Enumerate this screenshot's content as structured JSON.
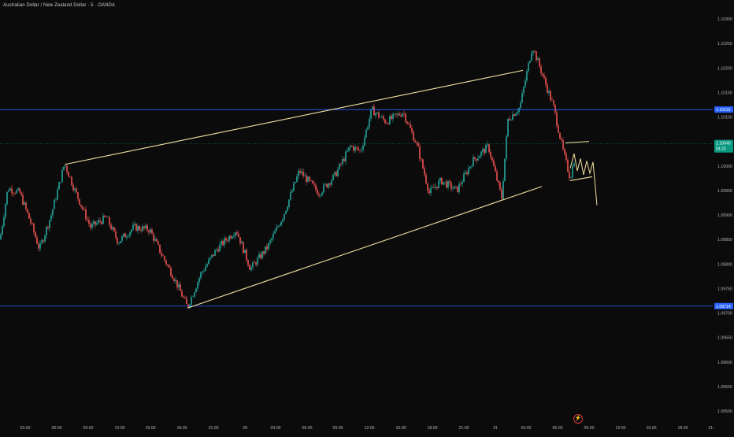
{
  "header": {
    "symbol_title": "Australian Dollar / New Zealand Dollar · 5 · OANDA"
  },
  "colors": {
    "background": "#0b0b0c",
    "up_candle": "#26a69a",
    "down_candle": "#ef5350",
    "trendline": "#f3e2a0",
    "hline": "#2962ff",
    "price_tag": "#2962ff",
    "current_tag": "#089981"
  },
  "chart_data": {
    "type": "candlestick",
    "title": "Australian Dollar / New Zealand Dollar · 5 · OANDA",
    "timeframe": "5",
    "ylim": [
      1.0945,
      1.1032
    ],
    "grid": false,
    "y_ticks": [
      "1.10300",
      "1.10250",
      "1.10200",
      "1.10150",
      "1.10100",
      "1.10050",
      "1.10000",
      "1.09950",
      "1.09900",
      "1.09850",
      "1.09800",
      "1.09750",
      "1.09700",
      "1.09650",
      "1.09600",
      "1.09550",
      "1.09500"
    ],
    "x_ticks": [
      "03:00",
      "06:00",
      "09:00",
      "12:00",
      "15:00",
      "18:00",
      "21:00",
      "28",
      "03:00",
      "06:00",
      "09:00",
      "12:00",
      "15:00",
      "18:00",
      "21:00",
      "31",
      "03:00",
      "06:00",
      "09:00",
      "12:00",
      "15:00",
      "18:00",
      "21:"
    ],
    "horizontal_lines": [
      {
        "price": 1.10115,
        "label": "1.10115"
      },
      {
        "price": 1.09714,
        "label": "1.09714"
      }
    ],
    "current_price": {
      "price": 1.10045,
      "label": "1.10045",
      "countdown": "04:23"
    },
    "trendlines": [
      {
        "from": {
          "bar": 82,
          "price": 1.10003
        },
        "to": {
          "bar": 664,
          "price": 1.10195
        }
      },
      {
        "from": {
          "bar": 238,
          "price": 1.0971
        },
        "to": {
          "bar": 688,
          "price": 1.09958
        }
      },
      {
        "from": {
          "bar": 718,
          "price": 1.10047
        },
        "to": {
          "bar": 748,
          "price": 1.1005
        }
      },
      {
        "from": {
          "bar": 724,
          "price": 1.0997
        },
        "to": {
          "bar": 752,
          "price": 1.09978
        }
      }
    ],
    "projection_path": [
      {
        "bar": 724,
        "price": 1.09995
      },
      {
        "bar": 729,
        "price": 1.10025
      },
      {
        "bar": 733,
        "price": 1.0999
      },
      {
        "bar": 737,
        "price": 1.10015
      },
      {
        "bar": 741,
        "price": 1.09982
      },
      {
        "bar": 745,
        "price": 1.1001
      },
      {
        "bar": 749,
        "price": 1.09985
      },
      {
        "bar": 753,
        "price": 1.10008
      },
      {
        "bar": 758,
        "price": 1.0992
      }
    ],
    "price_path": [
      {
        "bar": 0,
        "price": 1.0985
      },
      {
        "bar": 10,
        "price": 1.09955
      },
      {
        "bar": 25,
        "price": 1.09945
      },
      {
        "bar": 40,
        "price": 1.0988
      },
      {
        "bar": 50,
        "price": 1.0983
      },
      {
        "bar": 65,
        "price": 1.099
      },
      {
        "bar": 82,
        "price": 1.10005
      },
      {
        "bar": 95,
        "price": 1.0995
      },
      {
        "bar": 115,
        "price": 1.09875
      },
      {
        "bar": 135,
        "price": 1.09895
      },
      {
        "bar": 150,
        "price": 1.09845
      },
      {
        "bar": 170,
        "price": 1.09875
      },
      {
        "bar": 190,
        "price": 1.0987
      },
      {
        "bar": 205,
        "price": 1.0982
      },
      {
        "bar": 220,
        "price": 1.09775
      },
      {
        "bar": 238,
        "price": 1.09712
      },
      {
        "bar": 255,
        "price": 1.0978
      },
      {
        "bar": 275,
        "price": 1.0983
      },
      {
        "bar": 300,
        "price": 1.0987
      },
      {
        "bar": 318,
        "price": 1.0979
      },
      {
        "bar": 340,
        "price": 1.09835
      },
      {
        "bar": 360,
        "price": 1.099
      },
      {
        "bar": 380,
        "price": 1.0999
      },
      {
        "bar": 405,
        "price": 1.09945
      },
      {
        "bar": 425,
        "price": 1.0998
      },
      {
        "bar": 445,
        "price": 1.1004
      },
      {
        "bar": 458,
        "price": 1.1003
      },
      {
        "bar": 472,
        "price": 1.10115
      },
      {
        "bar": 490,
        "price": 1.1009
      },
      {
        "bar": 512,
        "price": 1.1011
      },
      {
        "bar": 530,
        "price": 1.1004
      },
      {
        "bar": 545,
        "price": 1.09945
      },
      {
        "bar": 560,
        "price": 1.0997
      },
      {
        "bar": 580,
        "price": 1.0995
      },
      {
        "bar": 600,
        "price": 1.1001
      },
      {
        "bar": 620,
        "price": 1.1004
      },
      {
        "bar": 637,
        "price": 1.09935
      },
      {
        "bar": 645,
        "price": 1.10095
      },
      {
        "bar": 660,
        "price": 1.1012
      },
      {
        "bar": 676,
        "price": 1.10245
      },
      {
        "bar": 690,
        "price": 1.1018
      },
      {
        "bar": 703,
        "price": 1.1012
      },
      {
        "bar": 715,
        "price": 1.1003
      },
      {
        "bar": 724,
        "price": 1.09975
      },
      {
        "bar": 730,
        "price": 1.1002
      }
    ]
  },
  "footer": {
    "alert_icon": "lightning-icon"
  }
}
